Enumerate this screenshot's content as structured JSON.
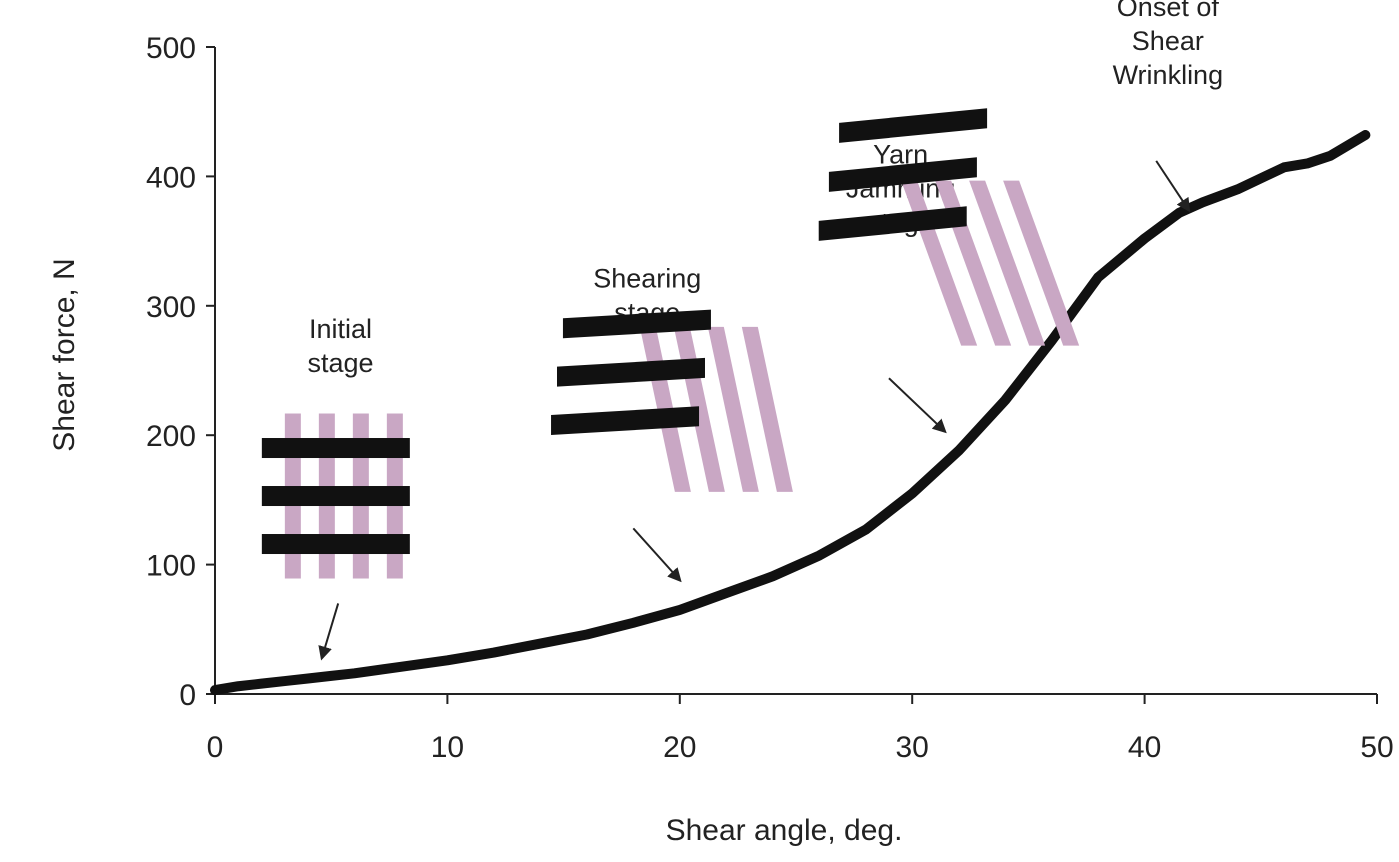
{
  "chart_data": {
    "type": "line",
    "title": "",
    "xlabel": "Shear angle, deg.",
    "ylabel": "Shear force, N",
    "xlim": [
      0,
      50
    ],
    "ylim": [
      0,
      500
    ],
    "x_ticks": [
      0,
      10,
      20,
      30,
      40,
      50
    ],
    "y_ticks": [
      0,
      100,
      200,
      300,
      400,
      500
    ],
    "x_tick_labels": [
      "0",
      "10",
      "20",
      "30",
      "40",
      "50"
    ],
    "y_tick_labels": [
      "0",
      "100",
      "200",
      "300",
      "400",
      "500"
    ],
    "grid": false,
    "legend": "none",
    "series": [
      {
        "color": "#111111",
        "x": [
          0,
          1,
          2,
          3,
          4,
          5,
          6,
          8,
          10,
          12,
          14,
          16,
          18,
          20,
          22,
          24,
          26,
          28,
          30,
          32,
          34,
          36,
          38,
          40,
          41.5,
          42.5,
          44,
          46,
          47,
          48,
          49.5
        ],
        "y": [
          3,
          6,
          8,
          10,
          12,
          14,
          16,
          21,
          26,
          32,
          39,
          46,
          55,
          65,
          78,
          91,
          107,
          127,
          155,
          188,
          227,
          273,
          322,
          352,
          372,
          380,
          390,
          407,
          410,
          416,
          432
        ]
      }
    ],
    "annotations": [
      {
        "lines": [
          "Initial",
          "stage"
        ],
        "text_anchor": [
          5.4,
          275
        ],
        "arrow_from": [
          5.3,
          70
        ],
        "arrow_to": [
          4.6,
          28
        ],
        "diagram": {
          "center": [
            5.2,
            153
          ],
          "shear_deg": 0
        }
      },
      {
        "lines": [
          "Shearing",
          "stage"
        ],
        "text_anchor": [
          18.6,
          314
        ],
        "arrow_from": [
          18.0,
          128
        ],
        "arrow_to": [
          20.0,
          88
        ],
        "diagram": {
          "center": [
            17.9,
            220
          ],
          "shear_deg": 12
        }
      },
      {
        "lines": [
          "Yarn",
          "Jamming",
          "stage"
        ],
        "text_anchor": [
          29.5,
          410
        ],
        "arrow_from": [
          29.0,
          244
        ],
        "arrow_to": [
          31.4,
          203
        ],
        "diagram": {
          "center": [
            29.6,
            333
          ],
          "shear_deg": 20
        }
      },
      {
        "lines": [
          "Onset of",
          "Shear",
          "Wrinkling"
        ],
        "text_anchor": [
          41.0,
          524
        ],
        "arrow_from": [
          40.5,
          412
        ],
        "arrow_to": [
          41.9,
          374
        ],
        "diagram": null
      }
    ],
    "colors": {
      "axis": "#222222",
      "text": "#222222",
      "series": "#111111",
      "warp_yarn": "#c9a7c4",
      "weft_yarn": "#111111"
    }
  }
}
